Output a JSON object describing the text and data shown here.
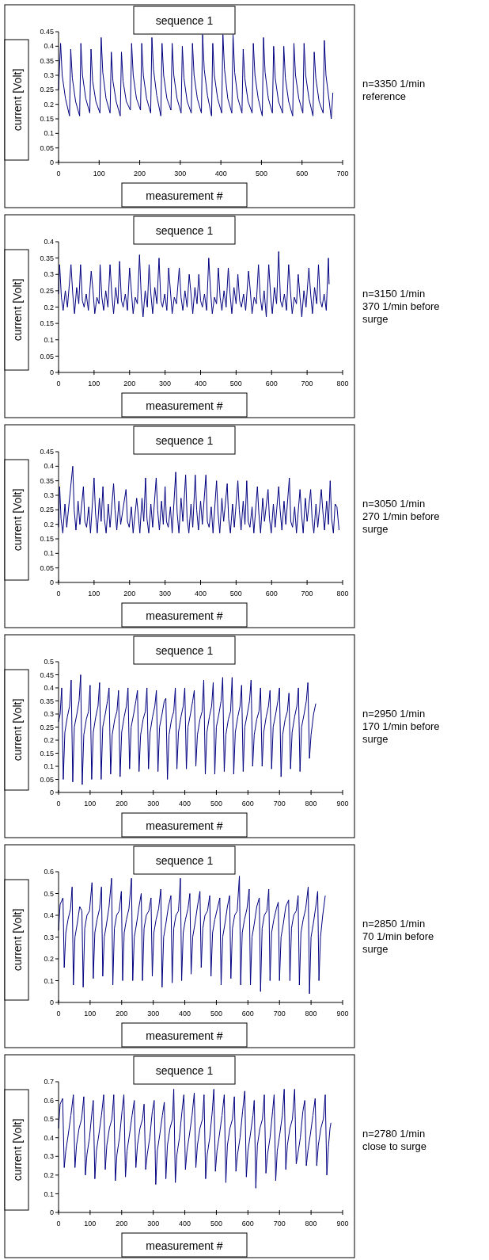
{
  "chart_data": [
    {
      "type": "line",
      "title": "sequence 1",
      "xlabel": "measurement #",
      "ylabel": "current [Volt]",
      "annotations": [
        "n=3350 1/min\nreference"
      ],
      "xlim": [
        0,
        700
      ],
      "xticks": [
        0,
        100,
        200,
        300,
        400,
        500,
        600,
        700
      ],
      "ylim": [
        0,
        0.45
      ],
      "yticks": [
        0,
        0.05,
        0.1,
        0.15,
        0.2,
        0.25,
        0.3,
        0.35,
        0.4,
        0.45
      ],
      "series": [
        {
          "color": "#000080",
          "x": [
            0,
            5,
            9,
            17,
            27,
            30,
            34,
            42,
            52,
            55,
            59,
            67,
            77,
            80,
            84,
            92,
            102,
            105,
            109,
            117,
            127,
            130,
            134,
            142,
            152,
            155,
            159,
            167,
            177,
            180,
            184,
            192,
            202,
            205,
            209,
            217,
            227,
            230,
            234,
            242,
            252,
            255,
            259,
            267,
            277,
            280,
            284,
            292,
            302,
            305,
            309,
            317,
            327,
            330,
            334,
            342,
            352,
            355,
            359,
            367,
            377,
            380,
            384,
            392,
            402,
            405,
            409,
            417,
            427,
            430,
            434,
            442,
            452,
            455,
            459,
            467,
            477,
            480,
            484,
            492,
            502,
            505,
            509,
            517,
            527,
            530,
            534,
            542,
            552,
            555,
            559,
            567,
            577,
            580,
            584,
            592,
            602,
            605,
            609,
            617,
            627,
            630,
            634,
            642,
            652,
            655,
            659,
            667,
            672,
            676
          ],
          "values": [
            0.25,
            0.41,
            0.3,
            0.22,
            0.16,
            0.39,
            0.29,
            0.21,
            0.16,
            0.41,
            0.3,
            0.22,
            0.17,
            0.39,
            0.28,
            0.21,
            0.17,
            0.43,
            0.31,
            0.22,
            0.17,
            0.38,
            0.28,
            0.21,
            0.16,
            0.38,
            0.28,
            0.21,
            0.18,
            0.41,
            0.3,
            0.22,
            0.18,
            0.41,
            0.3,
            0.22,
            0.17,
            0.43,
            0.32,
            0.23,
            0.16,
            0.41,
            0.3,
            0.22,
            0.18,
            0.41,
            0.3,
            0.22,
            0.17,
            0.4,
            0.29,
            0.21,
            0.17,
            0.41,
            0.3,
            0.22,
            0.17,
            0.44,
            0.32,
            0.23,
            0.16,
            0.41,
            0.3,
            0.22,
            0.17,
            0.44,
            0.32,
            0.22,
            0.17,
            0.44,
            0.31,
            0.22,
            0.17,
            0.39,
            0.29,
            0.21,
            0.17,
            0.41,
            0.3,
            0.22,
            0.16,
            0.43,
            0.31,
            0.22,
            0.17,
            0.4,
            0.29,
            0.21,
            0.17,
            0.4,
            0.29,
            0.21,
            0.16,
            0.41,
            0.3,
            0.22,
            0.17,
            0.41,
            0.3,
            0.22,
            0.16,
            0.38,
            0.29,
            0.21,
            0.17,
            0.42,
            0.3,
            0.21,
            0.15,
            0.24
          ]
        }
      ]
    },
    {
      "type": "line",
      "title": "sequence 1",
      "xlabel": "measurement #",
      "ylabel": "current [Volt]",
      "annotations": [
        "n=3150 1/min\n370 1/min before\nsurge"
      ],
      "xlim": [
        0,
        800
      ],
      "xticks": [
        0,
        100,
        200,
        300,
        400,
        500,
        600,
        700,
        800
      ],
      "ylim": [
        0,
        0.4
      ],
      "yticks": [
        0,
        0.05,
        0.1,
        0.15,
        0.2,
        0.25,
        0.3,
        0.35,
        0.4
      ],
      "series": [
        {
          "color": "#000080",
          "x": [
            0,
            3,
            8,
            13,
            19,
            25,
            35,
            40,
            45,
            51,
            57,
            62,
            67,
            72,
            78,
            84,
            92,
            97,
            102,
            108,
            114,
            117,
            122,
            127,
            133,
            139,
            145,
            150,
            155,
            161,
            167,
            172,
            177,
            182,
            188,
            194,
            200,
            205,
            210,
            216,
            222,
            228,
            233,
            238,
            244,
            250,
            255,
            260,
            265,
            271,
            277,
            283,
            288,
            293,
            299,
            305,
            310,
            315,
            320,
            326,
            332,
            340,
            345,
            350,
            356,
            362,
            368,
            373,
            378,
            384,
            390,
            395,
            400,
            405,
            411,
            417,
            423,
            428,
            433,
            439,
            445,
            450,
            455,
            460,
            466,
            472,
            478,
            483,
            488,
            494,
            500,
            505,
            510,
            515,
            521,
            527,
            535,
            540,
            545,
            551,
            557,
            563,
            568,
            573,
            579,
            585,
            592,
            597,
            602,
            608,
            614,
            620,
            625,
            630,
            636,
            642,
            648,
            653,
            658,
            664,
            670,
            675,
            680,
            685,
            691,
            697,
            705,
            710,
            715,
            721,
            727,
            732,
            737,
            742,
            748,
            754,
            760,
            762
          ],
          "values": [
            0.24,
            0.33,
            0.23,
            0.19,
            0.25,
            0.2,
            0.33,
            0.24,
            0.18,
            0.26,
            0.21,
            0.33,
            0.22,
            0.2,
            0.24,
            0.19,
            0.31,
            0.25,
            0.18,
            0.23,
            0.21,
            0.33,
            0.23,
            0.19,
            0.25,
            0.2,
            0.33,
            0.24,
            0.18,
            0.26,
            0.21,
            0.34,
            0.22,
            0.2,
            0.24,
            0.19,
            0.32,
            0.25,
            0.18,
            0.23,
            0.21,
            0.36,
            0.23,
            0.17,
            0.25,
            0.2,
            0.33,
            0.24,
            0.18,
            0.26,
            0.21,
            0.35,
            0.22,
            0.2,
            0.24,
            0.19,
            0.32,
            0.25,
            0.18,
            0.23,
            0.21,
            0.32,
            0.23,
            0.19,
            0.25,
            0.2,
            0.3,
            0.24,
            0.18,
            0.26,
            0.21,
            0.3,
            0.22,
            0.2,
            0.24,
            0.19,
            0.35,
            0.25,
            0.18,
            0.23,
            0.21,
            0.32,
            0.23,
            0.19,
            0.25,
            0.2,
            0.32,
            0.24,
            0.18,
            0.26,
            0.21,
            0.3,
            0.22,
            0.2,
            0.24,
            0.19,
            0.31,
            0.25,
            0.18,
            0.23,
            0.21,
            0.33,
            0.23,
            0.19,
            0.25,
            0.17,
            0.33,
            0.24,
            0.18,
            0.26,
            0.21,
            0.37,
            0.22,
            0.2,
            0.24,
            0.19,
            0.33,
            0.25,
            0.18,
            0.23,
            0.21,
            0.3,
            0.23,
            0.17,
            0.25,
            0.2,
            0.32,
            0.24,
            0.18,
            0.26,
            0.21,
            0.33,
            0.22,
            0.2,
            0.24,
            0.19,
            0.35,
            0.27
          ]
        }
      ]
    },
    {
      "type": "line",
      "title": "sequence 1",
      "xlabel": "measurement #",
      "ylabel": "current [Volt]",
      "annotations": [
        "n=3050 1/min\n270 1/min before\nsurge"
      ],
      "xlim": [
        0,
        800
      ],
      "xticks": [
        0,
        100,
        200,
        300,
        400,
        500,
        600,
        700,
        800
      ],
      "ylim": [
        0,
        0.45
      ],
      "yticks": [
        0,
        0.05,
        0.1,
        0.15,
        0.2,
        0.25,
        0.3,
        0.35,
        0.4,
        0.45
      ],
      "series": [
        {
          "color": "#000080",
          "x": [
            0,
            3,
            7,
            12,
            18,
            23,
            40,
            44,
            49,
            55,
            60,
            70,
            74,
            79,
            85,
            90,
            100,
            104,
            109,
            115,
            120,
            125,
            129,
            134,
            140,
            145,
            155,
            159,
            164,
            170,
            175,
            190,
            194,
            199,
            205,
            210,
            220,
            224,
            229,
            235,
            240,
            245,
            249,
            254,
            260,
            265,
            275,
            279,
            284,
            290,
            295,
            300,
            304,
            309,
            315,
            320,
            330,
            334,
            339,
            345,
            350,
            358,
            362,
            367,
            373,
            378,
            385,
            389,
            394,
            400,
            405,
            415,
            419,
            424,
            430,
            435,
            445,
            449,
            454,
            460,
            465,
            475,
            479,
            484,
            490,
            495,
            505,
            509,
            514,
            520,
            525,
            530,
            534,
            539,
            545,
            550,
            560,
            564,
            569,
            575,
            580,
            590,
            594,
            599,
            605,
            610,
            620,
            624,
            629,
            635,
            640,
            650,
            654,
            659,
            665,
            670,
            680,
            684,
            689,
            695,
            700,
            710,
            714,
            719,
            725,
            730,
            740,
            744,
            749,
            755,
            760,
            765,
            769,
            774,
            779,
            784,
            790
          ],
          "values": [
            0.19,
            0.33,
            0.22,
            0.17,
            0.27,
            0.19,
            0.4,
            0.25,
            0.18,
            0.28,
            0.2,
            0.33,
            0.21,
            0.19,
            0.26,
            0.17,
            0.36,
            0.24,
            0.17,
            0.29,
            0.21,
            0.33,
            0.22,
            0.17,
            0.27,
            0.19,
            0.34,
            0.25,
            0.18,
            0.28,
            0.2,
            0.32,
            0.21,
            0.19,
            0.26,
            0.17,
            0.29,
            0.24,
            0.17,
            0.29,
            0.21,
            0.36,
            0.22,
            0.17,
            0.27,
            0.19,
            0.36,
            0.25,
            0.18,
            0.28,
            0.2,
            0.33,
            0.21,
            0.19,
            0.26,
            0.17,
            0.38,
            0.24,
            0.17,
            0.29,
            0.21,
            0.37,
            0.22,
            0.17,
            0.27,
            0.19,
            0.37,
            0.25,
            0.18,
            0.28,
            0.2,
            0.37,
            0.21,
            0.19,
            0.26,
            0.17,
            0.35,
            0.24,
            0.17,
            0.29,
            0.21,
            0.34,
            0.22,
            0.17,
            0.27,
            0.19,
            0.35,
            0.25,
            0.18,
            0.28,
            0.2,
            0.35,
            0.21,
            0.19,
            0.26,
            0.17,
            0.33,
            0.24,
            0.17,
            0.29,
            0.21,
            0.32,
            0.22,
            0.17,
            0.27,
            0.19,
            0.33,
            0.25,
            0.18,
            0.28,
            0.2,
            0.36,
            0.21,
            0.19,
            0.26,
            0.17,
            0.32,
            0.24,
            0.17,
            0.29,
            0.21,
            0.32,
            0.22,
            0.17,
            0.27,
            0.19,
            0.32,
            0.25,
            0.18,
            0.28,
            0.2,
            0.35,
            0.22,
            0.17,
            0.27,
            0.26,
            0.18
          ]
        }
      ]
    },
    {
      "type": "line",
      "title": "sequence 1",
      "xlabel": "measurement #",
      "ylabel": "current [Volt]",
      "annotations": [
        "n=2950 1/min\n170 1/min before\nsurge"
      ],
      "xlim": [
        0,
        900
      ],
      "xticks": [
        0,
        100,
        200,
        300,
        400,
        500,
        600,
        700,
        800,
        900
      ],
      "ylim": [
        0,
        0.5
      ],
      "yticks": [
        0,
        0.05,
        0.1,
        0.15,
        0.2,
        0.25,
        0.3,
        0.35,
        0.4,
        0.45,
        0.5
      ],
      "series": [
        {
          "color": "#000080",
          "x": [
            0,
            5,
            10,
            15,
            20,
            28,
            35,
            40,
            45,
            50,
            58,
            65,
            70,
            75,
            80,
            88,
            95,
            100,
            105,
            110,
            118,
            125,
            130,
            135,
            140,
            148,
            155,
            160,
            165,
            170,
            178,
            185,
            190,
            195,
            200,
            208,
            215,
            220,
            225,
            230,
            238,
            245,
            250,
            255,
            260,
            268,
            275,
            280,
            285,
            290,
            298,
            305,
            310,
            315,
            320,
            328,
            335,
            340,
            345,
            350,
            358,
            365,
            370,
            375,
            380,
            388,
            395,
            400,
            405,
            410,
            418,
            425,
            430,
            435,
            440,
            448,
            455,
            460,
            465,
            470,
            478,
            485,
            490,
            495,
            500,
            508,
            515,
            520,
            525,
            530,
            538,
            545,
            550,
            555,
            560,
            568,
            575,
            580,
            585,
            590,
            598,
            605,
            610,
            615,
            620,
            628,
            635,
            640,
            645,
            650,
            658,
            665,
            670,
            675,
            680,
            688,
            695,
            700,
            705,
            710,
            718,
            725,
            730,
            735,
            740,
            748,
            755,
            760,
            765,
            770,
            778,
            785,
            790,
            795,
            800,
            808,
            815
          ],
          "values": [
            0.27,
            0.3,
            0.4,
            0.05,
            0.23,
            0.29,
            0.33,
            0.43,
            0.04,
            0.25,
            0.3,
            0.35,
            0.45,
            0.03,
            0.22,
            0.28,
            0.31,
            0.41,
            0.05,
            0.23,
            0.29,
            0.33,
            0.42,
            0.05,
            0.25,
            0.3,
            0.35,
            0.4,
            0.07,
            0.22,
            0.28,
            0.31,
            0.39,
            0.06,
            0.23,
            0.29,
            0.33,
            0.4,
            0.09,
            0.25,
            0.3,
            0.35,
            0.39,
            0.08,
            0.22,
            0.28,
            0.31,
            0.4,
            0.09,
            0.23,
            0.29,
            0.33,
            0.39,
            0.08,
            0.25,
            0.3,
            0.35,
            0.36,
            0.05,
            0.22,
            0.28,
            0.31,
            0.4,
            0.09,
            0.23,
            0.29,
            0.33,
            0.4,
            0.09,
            0.25,
            0.3,
            0.35,
            0.39,
            0.1,
            0.22,
            0.28,
            0.31,
            0.43,
            0.07,
            0.23,
            0.29,
            0.33,
            0.42,
            0.07,
            0.25,
            0.3,
            0.35,
            0.44,
            0.08,
            0.22,
            0.28,
            0.31,
            0.44,
            0.07,
            0.23,
            0.29,
            0.33,
            0.41,
            0.08,
            0.25,
            0.3,
            0.35,
            0.43,
            0.1,
            0.22,
            0.28,
            0.31,
            0.4,
            0.1,
            0.23,
            0.29,
            0.33,
            0.39,
            0.09,
            0.25,
            0.3,
            0.35,
            0.4,
            0.06,
            0.22,
            0.28,
            0.31,
            0.38,
            0.09,
            0.23,
            0.29,
            0.33,
            0.4,
            0.08,
            0.25,
            0.3,
            0.35,
            0.42,
            0.13,
            0.22,
            0.3,
            0.34
          ]
        }
      ]
    },
    {
      "type": "line",
      "title": "sequence 1",
      "xlabel": "measurement #",
      "ylabel": "current [Volt]",
      "annotations": [
        "n=2850 1/min\n70 1/min before\nsurge"
      ],
      "xlim": [
        0,
        900
      ],
      "xticks": [
        0,
        100,
        200,
        300,
        400,
        500,
        600,
        700,
        800,
        900
      ],
      "ylim": [
        0,
        0.6
      ],
      "yticks": [
        0,
        0.1,
        0.2,
        0.3,
        0.4,
        0.5,
        0.6
      ],
      "series": [
        {
          "color": "#000080",
          "x": [
            0,
            5,
            14,
            18,
            23,
            30,
            38,
            43,
            47,
            52,
            59,
            67,
            74,
            78,
            83,
            90,
            98,
            106,
            110,
            115,
            122,
            130,
            136,
            140,
            145,
            152,
            160,
            168,
            172,
            177,
            184,
            192,
            199,
            203,
            208,
            215,
            223,
            231,
            235,
            240,
            247,
            255,
            262,
            266,
            271,
            278,
            286,
            293,
            297,
            302,
            309,
            317,
            324,
            328,
            333,
            340,
            348,
            356,
            360,
            365,
            372,
            380,
            386,
            390,
            395,
            402,
            410,
            416,
            420,
            425,
            432,
            440,
            448,
            452,
            457,
            464,
            472,
            479,
            483,
            488,
            495,
            503,
            511,
            515,
            520,
            527,
            535,
            542,
            546,
            551,
            558,
            566,
            573,
            577,
            582,
            589,
            597,
            604,
            608,
            613,
            620,
            628,
            636,
            640,
            645,
            652,
            660,
            666,
            670,
            675,
            682,
            690,
            696,
            700,
            705,
            712,
            720,
            729,
            733,
            738,
            745,
            753,
            759,
            763,
            768,
            775,
            783,
            791,
            795,
            800,
            807,
            815,
            821,
            825,
            830,
            837,
            845
          ],
          "values": [
            0.33,
            0.45,
            0.48,
            0.16,
            0.32,
            0.38,
            0.43,
            0.53,
            0.08,
            0.3,
            0.36,
            0.44,
            0.42,
            0.07,
            0.34,
            0.4,
            0.42,
            0.55,
            0.11,
            0.32,
            0.38,
            0.43,
            0.53,
            0.12,
            0.3,
            0.36,
            0.44,
            0.57,
            0.08,
            0.34,
            0.4,
            0.42,
            0.51,
            0.1,
            0.32,
            0.38,
            0.43,
            0.57,
            0.1,
            0.3,
            0.36,
            0.44,
            0.5,
            0.1,
            0.34,
            0.4,
            0.42,
            0.48,
            0.12,
            0.32,
            0.38,
            0.43,
            0.52,
            0.07,
            0.3,
            0.36,
            0.44,
            0.49,
            0.09,
            0.34,
            0.4,
            0.42,
            0.57,
            0.1,
            0.32,
            0.38,
            0.43,
            0.5,
            0.13,
            0.3,
            0.36,
            0.44,
            0.51,
            0.16,
            0.34,
            0.4,
            0.42,
            0.49,
            0.12,
            0.32,
            0.38,
            0.43,
            0.48,
            0.08,
            0.3,
            0.36,
            0.44,
            0.49,
            0.11,
            0.34,
            0.4,
            0.42,
            0.58,
            0.08,
            0.32,
            0.38,
            0.43,
            0.52,
            0.08,
            0.3,
            0.36,
            0.44,
            0.48,
            0.05,
            0.34,
            0.4,
            0.42,
            0.52,
            0.1,
            0.32,
            0.38,
            0.43,
            0.46,
            0.1,
            0.3,
            0.36,
            0.44,
            0.47,
            0.1,
            0.34,
            0.4,
            0.42,
            0.49,
            0.08,
            0.32,
            0.38,
            0.43,
            0.53,
            0.04,
            0.3,
            0.36,
            0.44,
            0.51,
            0.1,
            0.3,
            0.4,
            0.49
          ]
        }
      ]
    },
    {
      "type": "line",
      "title": "sequence 1",
      "xlabel": "measurement #",
      "ylabel": "current [Volt]",
      "annotations": [
        "n=2780 1/min\nclose to surge"
      ],
      "xlim": [
        0,
        900
      ],
      "xticks": [
        0,
        100,
        200,
        300,
        400,
        500,
        600,
        700,
        800,
        900
      ],
      "ylim": [
        0,
        0.7
      ],
      "yticks": [
        0,
        0.1,
        0.2,
        0.3,
        0.4,
        0.5,
        0.6,
        0.7
      ],
      "series": [
        {
          "color": "#000080",
          "x": [
            0,
            5,
            13,
            18,
            23,
            31,
            39,
            47,
            52,
            57,
            65,
            73,
            80,
            85,
            90,
            98,
            106,
            110,
            115,
            120,
            128,
            136,
            143,
            148,
            153,
            161,
            169,
            175,
            180,
            185,
            193,
            201,
            207,
            212,
            217,
            225,
            233,
            240,
            245,
            250,
            258,
            266,
            271,
            276,
            281,
            289,
            297,
            303,
            308,
            313,
            321,
            329,
            335,
            340,
            345,
            353,
            361,
            365,
            370,
            375,
            383,
            391,
            397,
            402,
            407,
            415,
            423,
            430,
            435,
            440,
            448,
            456,
            461,
            466,
            471,
            479,
            487,
            492,
            497,
            502,
            510,
            518,
            525,
            530,
            535,
            543,
            551,
            557,
            562,
            567,
            575,
            583,
            590,
            595,
            600,
            608,
            616,
            620,
            625,
            630,
            638,
            646,
            652,
            657,
            662,
            670,
            678,
            683,
            688,
            693,
            701,
            709,
            715,
            720,
            725,
            733,
            741,
            748,
            753,
            758,
            766,
            774,
            780,
            785,
            790,
            798,
            806,
            813,
            818,
            823,
            831,
            839,
            845,
            850,
            855,
            860,
            863
          ],
          "values": [
            0.45,
            0.58,
            0.61,
            0.24,
            0.33,
            0.42,
            0.52,
            0.63,
            0.24,
            0.36,
            0.45,
            0.5,
            0.62,
            0.2,
            0.31,
            0.4,
            0.54,
            0.6,
            0.18,
            0.33,
            0.42,
            0.52,
            0.63,
            0.23,
            0.36,
            0.45,
            0.5,
            0.63,
            0.17,
            0.31,
            0.4,
            0.54,
            0.63,
            0.19,
            0.33,
            0.42,
            0.52,
            0.6,
            0.24,
            0.36,
            0.45,
            0.5,
            0.58,
            0.23,
            0.31,
            0.4,
            0.54,
            0.6,
            0.15,
            0.33,
            0.42,
            0.52,
            0.59,
            0.18,
            0.36,
            0.45,
            0.5,
            0.66,
            0.16,
            0.31,
            0.4,
            0.54,
            0.63,
            0.23,
            0.33,
            0.42,
            0.52,
            0.64,
            0.24,
            0.36,
            0.45,
            0.5,
            0.63,
            0.18,
            0.31,
            0.4,
            0.54,
            0.66,
            0.22,
            0.33,
            0.42,
            0.52,
            0.63,
            0.16,
            0.36,
            0.45,
            0.5,
            0.62,
            0.22,
            0.31,
            0.4,
            0.54,
            0.65,
            0.19,
            0.33,
            0.42,
            0.52,
            0.6,
            0.13,
            0.36,
            0.45,
            0.5,
            0.63,
            0.21,
            0.31,
            0.4,
            0.54,
            0.63,
            0.17,
            0.33,
            0.42,
            0.52,
            0.66,
            0.23,
            0.36,
            0.45,
            0.5,
            0.66,
            0.26,
            0.31,
            0.4,
            0.54,
            0.6,
            0.25,
            0.33,
            0.42,
            0.52,
            0.61,
            0.25,
            0.36,
            0.45,
            0.5,
            0.63,
            0.2,
            0.35,
            0.45,
            0.48
          ]
        }
      ]
    }
  ]
}
